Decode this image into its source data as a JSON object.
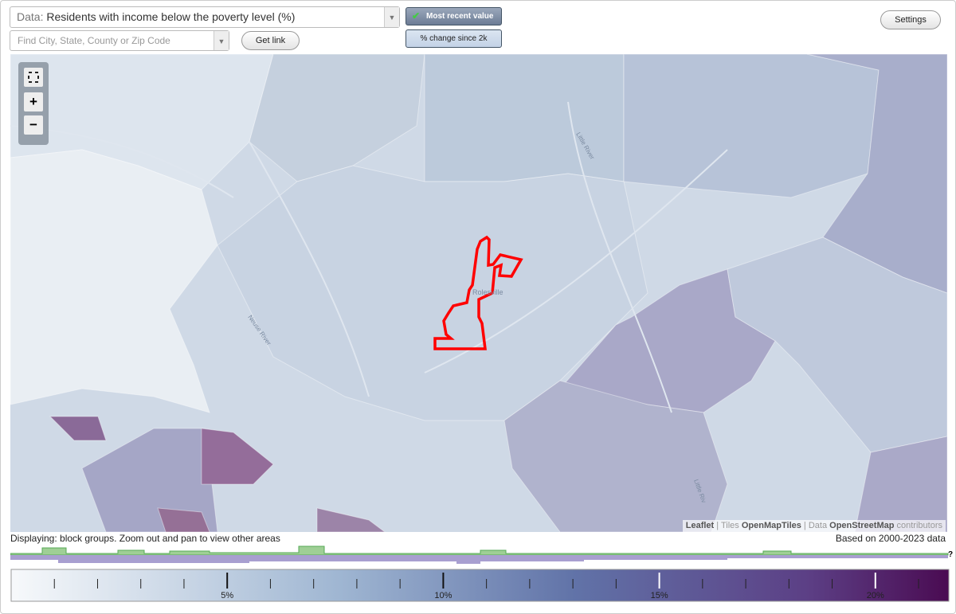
{
  "controls": {
    "data_prefix": "Data:",
    "data_value": "Residents with income below the poverty level (%)",
    "search_placeholder": "Find City, State, County or Zip Code",
    "get_link": "Get link",
    "mode_recent": "Most recent value",
    "mode_change": "% change since 2k",
    "settings": "Settings",
    "zoom_in": "+",
    "zoom_out": "−"
  },
  "map": {
    "place_label": "Rolesville",
    "river_labels": [
      "Little River",
      "Neuse River",
      "Little Riv"
    ],
    "attribution": {
      "leaflet": "Leaflet",
      "tiles": "Tiles",
      "tiles_source": "OpenMapTiles",
      "data": "Data",
      "data_source": "OpenStreetMap",
      "contributors": "contributors"
    }
  },
  "status": {
    "displaying": "Displaying: block groups. Zoom out and pan to view other areas",
    "based_on": "Based on 2000-2023 data",
    "help": "?"
  },
  "legend": {
    "range": [
      0,
      21.7
    ],
    "ticks": [
      {
        "value": 5,
        "label": "5%"
      },
      {
        "value": 10,
        "label": "10%"
      },
      {
        "value": 15,
        "label": "15%"
      },
      {
        "value": 20,
        "label": "20%"
      }
    ],
    "minor_ticks": [
      1,
      2,
      3,
      4,
      6,
      7,
      8,
      9,
      11,
      12,
      13,
      14,
      16,
      17,
      18,
      19,
      21
    ]
  }
}
